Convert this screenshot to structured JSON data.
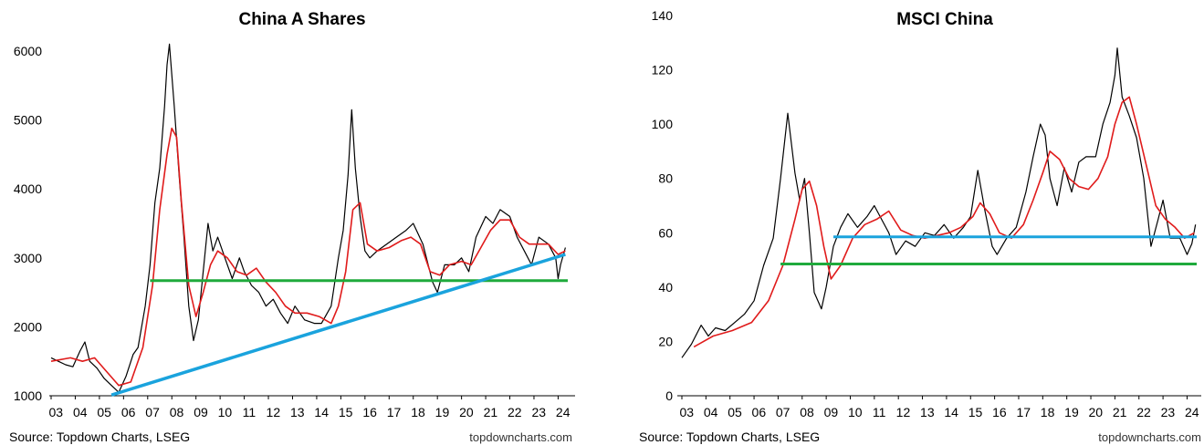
{
  "colors": {
    "price": "#000000",
    "moving_average": "#e01b1b",
    "support_green": "#1faa3c",
    "trend_blue": "#1aa3dd"
  },
  "footer": {
    "left_source": "Source: Topdown Charts, LSEG",
    "left_site": "topdowncharts.com",
    "right_source": "Source: Topdown Charts, LSEG",
    "right_site": "topdowncharts.com"
  },
  "chart_data": [
    {
      "type": "line",
      "title": "China A Shares",
      "xlabel": "",
      "ylabel": "",
      "xlim": [
        2003.0,
        2024.4
      ],
      "ylim": [
        1000,
        6000
      ],
      "yticks": [
        1000,
        2000,
        3000,
        4000,
        5000,
        6000
      ],
      "xtick_labels": [
        "03",
        "04",
        "05",
        "06",
        "07",
        "08",
        "09",
        "10",
        "11",
        "12",
        "13",
        "14",
        "15",
        "16",
        "17",
        "18",
        "19",
        "20",
        "21",
        "22",
        "23",
        "24"
      ],
      "grid": false,
      "series": [
        {
          "role": "price",
          "x": [
            2003.0,
            2003.3,
            2003.6,
            2003.9,
            2004.2,
            2004.4,
            2004.6,
            2004.9,
            2005.2,
            2005.5,
            2005.8,
            2006.1,
            2006.4,
            2006.6,
            2006.9,
            2007.1,
            2007.3,
            2007.5,
            2007.7,
            2007.8,
            2007.9,
            2008.1,
            2008.3,
            2008.5,
            2008.7,
            2008.9,
            2009.1,
            2009.3,
            2009.5,
            2009.7,
            2009.9,
            2010.2,
            2010.5,
            2010.8,
            2011.0,
            2011.3,
            2011.6,
            2011.9,
            2012.2,
            2012.5,
            2012.8,
            2013.1,
            2013.5,
            2013.9,
            2014.2,
            2014.6,
            2014.9,
            2015.1,
            2015.3,
            2015.45,
            2015.6,
            2015.8,
            2016.0,
            2016.2,
            2016.5,
            2016.9,
            2017.3,
            2017.7,
            2018.0,
            2018.4,
            2018.8,
            2019.0,
            2019.3,
            2019.7,
            2020.0,
            2020.3,
            2020.6,
            2021.0,
            2021.3,
            2021.6,
            2022.0,
            2022.3,
            2022.6,
            2022.9,
            2023.2,
            2023.6,
            2023.9,
            2024.0,
            2024.1,
            2024.3
          ],
          "y": [
            1550,
            1500,
            1450,
            1420,
            1650,
            1780,
            1500,
            1400,
            1250,
            1150,
            1050,
            1280,
            1600,
            1700,
            2300,
            2900,
            3800,
            4300,
            5200,
            5800,
            6100,
            5200,
            4200,
            3300,
            2300,
            1800,
            2100,
            2800,
            3500,
            3100,
            3300,
            3000,
            2700,
            3000,
            2800,
            2600,
            2500,
            2300,
            2400,
            2200,
            2050,
            2300,
            2100,
            2050,
            2050,
            2300,
            3000,
            3400,
            4200,
            5150,
            4300,
            3600,
            3100,
            3000,
            3100,
            3200,
            3300,
            3400,
            3500,
            3200,
            2650,
            2500,
            2900,
            2900,
            3000,
            2800,
            3300,
            3600,
            3500,
            3700,
            3600,
            3300,
            3100,
            2900,
            3300,
            3200,
            3000,
            2700,
            2900,
            3150
          ]
        },
        {
          "role": "moving_average",
          "x": [
            2003.0,
            2003.8,
            2004.3,
            2004.8,
            2005.3,
            2005.8,
            2006.3,
            2006.8,
            2007.2,
            2007.5,
            2007.8,
            2008.0,
            2008.2,
            2008.4,
            2008.7,
            2009.0,
            2009.3,
            2009.6,
            2009.9,
            2010.3,
            2010.7,
            2011.1,
            2011.5,
            2011.9,
            2012.3,
            2012.7,
            2013.1,
            2013.6,
            2014.1,
            2014.6,
            2014.9,
            2015.2,
            2015.5,
            2015.8,
            2016.1,
            2016.5,
            2017.0,
            2017.5,
            2017.9,
            2018.3,
            2018.7,
            2019.1,
            2019.5,
            2020.0,
            2020.4,
            2020.8,
            2021.2,
            2021.6,
            2022.0,
            2022.4,
            2022.8,
            2023.2,
            2023.6,
            2024.0,
            2024.3
          ],
          "y": [
            1500,
            1550,
            1500,
            1550,
            1350,
            1150,
            1200,
            1700,
            2600,
            3700,
            4500,
            4880,
            4750,
            3800,
            2600,
            2150,
            2500,
            2900,
            3100,
            3000,
            2800,
            2750,
            2850,
            2650,
            2500,
            2300,
            2200,
            2200,
            2150,
            2050,
            2300,
            2800,
            3700,
            3800,
            3200,
            3100,
            3150,
            3250,
            3300,
            3200,
            2800,
            2750,
            2900,
            2950,
            2900,
            3150,
            3400,
            3550,
            3550,
            3300,
            3200,
            3200,
            3200,
            3050,
            3100
          ]
        },
        {
          "role": "support_line",
          "x": [
            2007.1,
            2024.4
          ],
          "y": [
            2670,
            2670
          ]
        },
        {
          "role": "trend_line",
          "x": [
            2005.5,
            2024.3
          ],
          "y": [
            1010,
            3050
          ]
        }
      ]
    },
    {
      "type": "line",
      "title": "MSCI China",
      "xlabel": "",
      "ylabel": "",
      "xlim": [
        2003.0,
        2024.4
      ],
      "ylim": [
        0,
        140
      ],
      "yticks": [
        0,
        20,
        40,
        60,
        80,
        100,
        120,
        140
      ],
      "xtick_labels": [
        "03",
        "04",
        "05",
        "06",
        "07",
        "08",
        "09",
        "10",
        "11",
        "12",
        "13",
        "14",
        "15",
        "16",
        "17",
        "18",
        "19",
        "20",
        "21",
        "22",
        "23",
        "24"
      ],
      "grid": false,
      "series": [
        {
          "role": "price",
          "x": [
            2003.0,
            2003.4,
            2003.8,
            2004.1,
            2004.4,
            2004.8,
            2005.2,
            2005.6,
            2006.0,
            2006.4,
            2006.8,
            2007.1,
            2007.4,
            2007.7,
            2007.9,
            2008.1,
            2008.3,
            2008.5,
            2008.8,
            2009.0,
            2009.3,
            2009.6,
            2009.9,
            2010.3,
            2010.7,
            2011.0,
            2011.3,
            2011.6,
            2011.9,
            2012.3,
            2012.7,
            2013.1,
            2013.5,
            2013.9,
            2014.3,
            2014.7,
            2015.0,
            2015.3,
            2015.6,
            2015.9,
            2016.1,
            2016.5,
            2016.9,
            2017.3,
            2017.6,
            2017.9,
            2018.1,
            2018.3,
            2018.6,
            2018.9,
            2019.2,
            2019.5,
            2019.8,
            2020.2,
            2020.5,
            2020.8,
            2021.0,
            2021.1,
            2021.3,
            2021.6,
            2021.9,
            2022.2,
            2022.5,
            2022.8,
            2023.0,
            2023.3,
            2023.7,
            2024.0,
            2024.2,
            2024.35
          ],
          "y": [
            14,
            19,
            26,
            22,
            25,
            24,
            27,
            30,
            35,
            48,
            58,
            80,
            104,
            82,
            72,
            80,
            60,
            38,
            32,
            40,
            55,
            62,
            67,
            62,
            66,
            70,
            65,
            60,
            52,
            57,
            55,
            60,
            59,
            63,
            58,
            62,
            66,
            83,
            68,
            55,
            52,
            58,
            62,
            75,
            88,
            100,
            96,
            80,
            70,
            84,
            75,
            86,
            88,
            88,
            100,
            108,
            118,
            128,
            110,
            103,
            95,
            80,
            55,
            65,
            72,
            58,
            58,
            52,
            56,
            63
          ]
        },
        {
          "role": "moving_average",
          "x": [
            2003.5,
            2004.3,
            2005.1,
            2005.9,
            2006.6,
            2007.2,
            2007.7,
            2008.0,
            2008.3,
            2008.6,
            2008.9,
            2009.2,
            2009.6,
            2010.1,
            2010.6,
            2011.1,
            2011.6,
            2012.1,
            2012.6,
            2013.1,
            2013.6,
            2014.1,
            2014.6,
            2015.1,
            2015.4,
            2015.8,
            2016.2,
            2016.7,
            2017.2,
            2017.6,
            2018.0,
            2018.3,
            2018.7,
            2019.1,
            2019.5,
            2019.9,
            2020.3,
            2020.7,
            2021.0,
            2021.3,
            2021.6,
            2021.9,
            2022.3,
            2022.7,
            2023.1,
            2023.5,
            2023.9,
            2024.3
          ],
          "y": [
            18,
            22,
            24,
            27,
            35,
            48,
            65,
            76,
            79,
            70,
            55,
            43,
            48,
            58,
            63,
            65,
            68,
            61,
            59,
            58,
            59,
            60,
            62,
            66,
            71,
            67,
            60,
            58,
            63,
            72,
            82,
            90,
            87,
            80,
            77,
            76,
            80,
            88,
            100,
            108,
            110,
            100,
            85,
            70,
            65,
            62,
            58,
            60
          ]
        },
        {
          "role": "support_line",
          "x": [
            2007.1,
            2024.4
          ],
          "y": [
            48.5,
            48.5
          ]
        },
        {
          "role": "resistance_line",
          "x": [
            2009.3,
            2024.4
          ],
          "y": [
            58.5,
            58.5
          ]
        }
      ]
    }
  ]
}
